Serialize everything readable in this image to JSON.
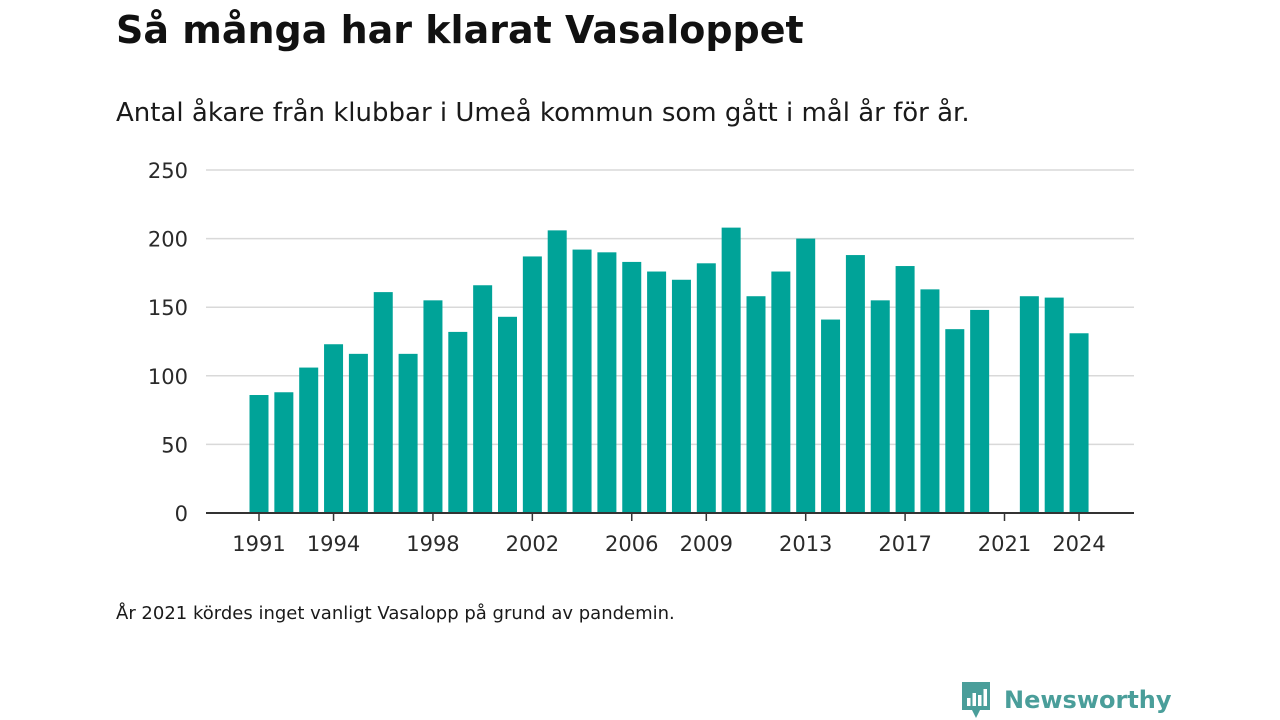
{
  "header": {
    "title": "Så många har klarat Vasaloppet",
    "subtitle": "Antal åkare från klubbar i Umeå kommun som gått i mål år för år."
  },
  "footer": {
    "note": "År 2021 kördes inget vanligt Vasalopp på grund av pandemin.",
    "brand": "Newsworthy"
  },
  "colors": {
    "bar": "#00a398",
    "brand": "#4a9e9a"
  },
  "chart_data": {
    "type": "bar",
    "x": [
      1991,
      1992,
      1993,
      1994,
      1995,
      1996,
      1997,
      1998,
      1999,
      2000,
      2001,
      2002,
      2003,
      2004,
      2005,
      2006,
      2007,
      2008,
      2009,
      2010,
      2011,
      2012,
      2013,
      2014,
      2015,
      2016,
      2017,
      2018,
      2019,
      2020,
      2021,
      2022,
      2023,
      2024
    ],
    "values": [
      86,
      88,
      106,
      123,
      116,
      161,
      116,
      155,
      132,
      166,
      143,
      187,
      206,
      192,
      190,
      183,
      176,
      170,
      182,
      208,
      158,
      176,
      200,
      141,
      188,
      155,
      180,
      163,
      134,
      148,
      null,
      158,
      157,
      131
    ],
    "x_tick_labels": [
      "1991",
      "1994",
      "1998",
      "2002",
      "2006",
      "2009",
      "2013",
      "2017",
      "2021",
      "2024"
    ],
    "y_ticks": [
      0,
      50,
      100,
      150,
      200,
      250
    ],
    "ylim": [
      0,
      250
    ],
    "grid": true
  }
}
